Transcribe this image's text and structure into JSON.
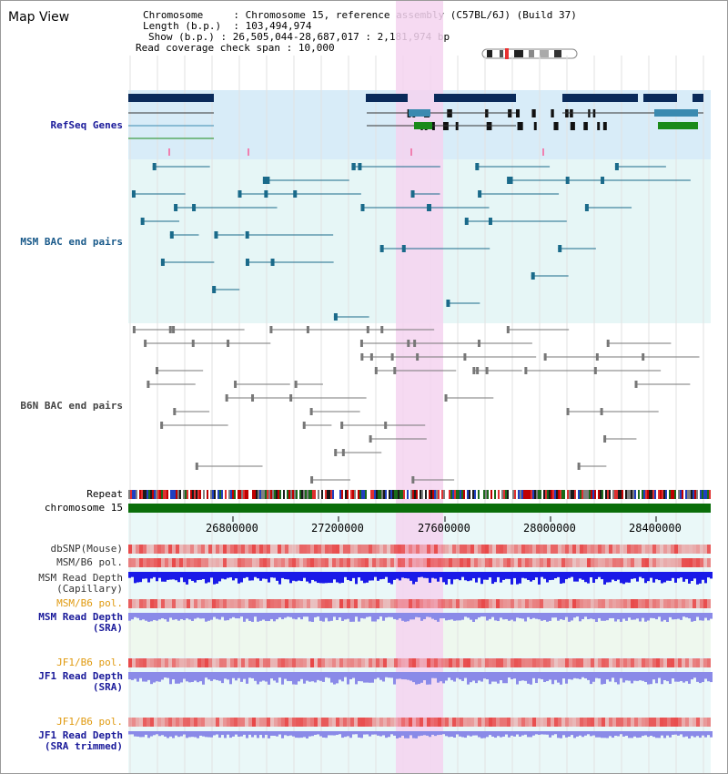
{
  "panel": {
    "title": "Map View"
  },
  "info": {
    "chromosome_label": "Chromosome",
    "chromosome_value": "Chromosome 15, reference assembly (C57BL/6J) (Build 37)",
    "length_label": "Length (b.p.)",
    "length_value": "103,494,974",
    "show_label": "Show (b.p.)",
    "show_value": "26,505,044-28,687,017 : 2,181,974 bp",
    "span_label": "Read coverage check span",
    "span_value": "10,000"
  },
  "tracks": {
    "refseq": "RefSeq Genes",
    "msm_bac": "MSM BAC end pairs",
    "b6n_bac": "B6N BAC end pairs",
    "repeat": "Repeat",
    "chromosome": "chromosome 15",
    "dbsnp": "dbSNP(Mouse)",
    "msm_b6_pol_1": "MSM/B6 pol.",
    "msm_read_depth_cap_1": "MSM Read Depth",
    "msm_read_depth_cap_2": "(Capillary)",
    "msm_b6_pol_2": "MSM/B6 pol.",
    "msm_read_depth_sra_1": "MSM Read Depth",
    "msm_read_depth_sra_2": "(SRA)",
    "jf1_b6_pol_1": "JF1/B6 pol.",
    "jf1_read_depth_sra_1": "JF1 Read Depth",
    "jf1_read_depth_sra_2": "(SRA)",
    "jf1_b6_pol_2": "JF1/B6 pol.",
    "jf1_read_depth_trim_1": "JF1 Read Depth",
    "jf1_read_depth_trim_2": "(SRA trimmed)"
  },
  "axis": {
    "ticks": [
      "26800000",
      "27200000",
      "27600000",
      "28000000",
      "28400000"
    ]
  },
  "colors": {
    "refseq_bg": "#d8ecf8",
    "bac_bg": "#e6f6f6",
    "highlight": "#f4d4f0",
    "chromosome_bar": "#0a6e0a",
    "gene_dark": "#0a2a5a",
    "gene_teal": "#3a8ab0",
    "gene_green": "#1a8a1a",
    "bac_msm": "#1a6a8a",
    "bac_b6n": "#777777",
    "pol": "#e84848",
    "depth_cap": "#1a1ae8",
    "depth_sra": "#8a8ae8"
  }
}
